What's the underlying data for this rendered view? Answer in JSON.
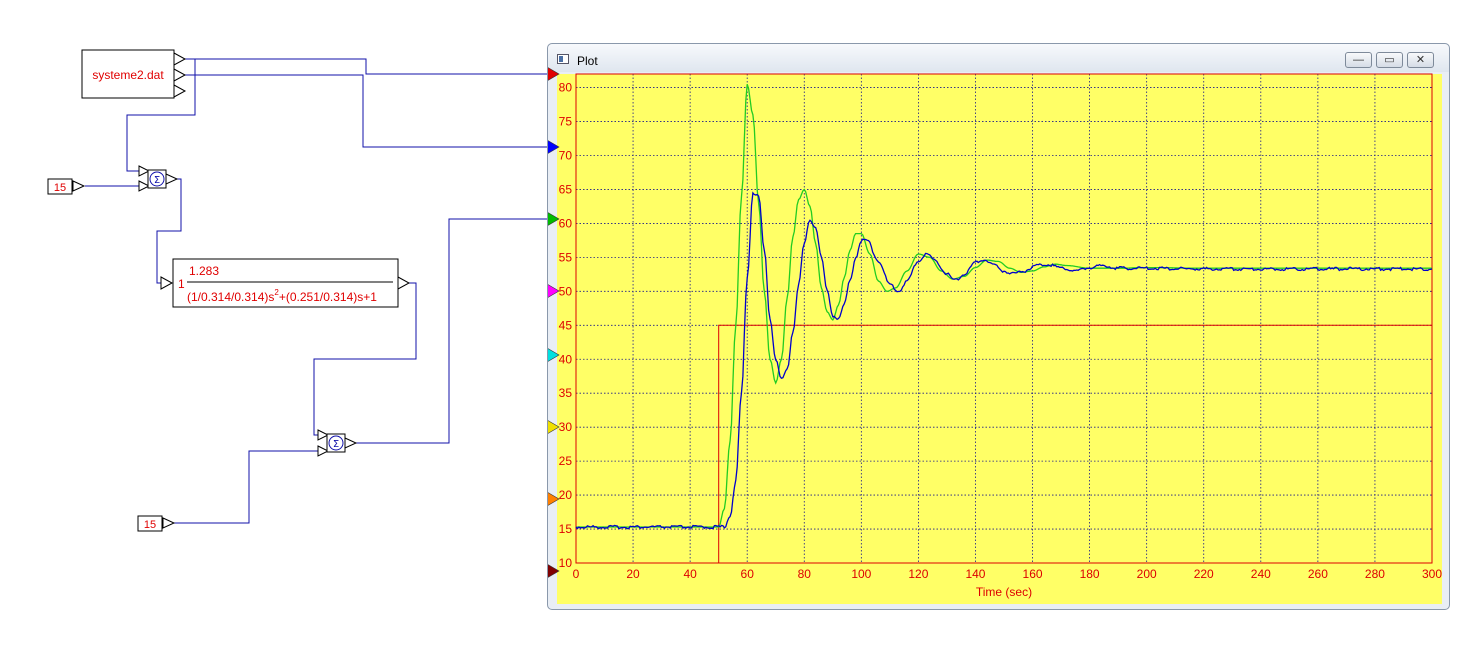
{
  "blocks": {
    "data_file": "systeme2.dat",
    "const_top": "15",
    "const_bottom": "15",
    "sum_symbol": "Σ",
    "tf_gain": "1",
    "tf_num": "1.283",
    "tf_den_part1": "(1/0.314/0.314)s",
    "tf_den_exp": "2",
    "tf_den_part2": "+(0.251/0.314)s+1"
  },
  "window": {
    "title": "Plot",
    "minimize_label": "—",
    "restore_label": "▭",
    "close_label": "✕"
  },
  "input_ports": [
    "red",
    "blue",
    "green",
    "magenta",
    "cyan",
    "yellow",
    "orange",
    "darkred"
  ],
  "colors": {
    "plot_bg": "#ffff66",
    "axis": "#dd0000",
    "grid": "#1a1a8a",
    "series_red": "#dd0000",
    "series_blue": "#0000cc",
    "series_green": "#22cc22",
    "wire": "#1010aa",
    "port_red": "#e00000",
    "port_blue": "#0000ff",
    "port_green": "#00bb00",
    "port_magenta": "#ff00ff",
    "port_cyan": "#00e0e0",
    "port_yellow": "#f0e000",
    "port_orange": "#ff8000",
    "port_darkred": "#800000"
  },
  "chart_data": {
    "type": "line",
    "xlabel": "Time (sec)",
    "ylabel": "",
    "xlim": [
      0,
      300
    ],
    "ylim": [
      10,
      82
    ],
    "xticks": [
      0,
      20,
      40,
      60,
      80,
      100,
      120,
      140,
      160,
      180,
      200,
      220,
      240,
      260,
      280,
      300
    ],
    "yticks": [
      10,
      15,
      20,
      25,
      30,
      35,
      40,
      45,
      50,
      55,
      60,
      65,
      70,
      75,
      80
    ],
    "grid": true,
    "series": [
      {
        "color": "red",
        "x": [
          0,
          50,
          50,
          300
        ],
        "y": [
          10,
          10,
          45,
          45
        ]
      },
      {
        "color": "green",
        "x": [
          0,
          50,
          52,
          54,
          56,
          58,
          60,
          62,
          64,
          66,
          68,
          70,
          72,
          74,
          76,
          78,
          80,
          82,
          84,
          86,
          88,
          90,
          92,
          94,
          96,
          98,
          100,
          103,
          106,
          109,
          112,
          116,
          120,
          124,
          128,
          132,
          136,
          140,
          144,
          148,
          152,
          156,
          160,
          164,
          168,
          172,
          180,
          190,
          200,
          220,
          240,
          260,
          280,
          300
        ],
        "y": [
          15.3,
          15.3,
          18,
          28,
          45,
          64,
          80.5,
          76,
          63,
          50,
          40,
          36.5,
          40,
          49,
          58,
          63.5,
          65,
          62.5,
          57,
          50.5,
          47,
          45.8,
          48,
          52,
          56,
          58.5,
          58.5,
          55.5,
          51.5,
          50,
          50.5,
          53,
          55.5,
          55,
          53,
          51.8,
          52.2,
          53.5,
          54.6,
          54.4,
          53.4,
          52.8,
          53,
          53.6,
          54,
          53.8,
          53.4,
          53.4,
          53.5,
          53.4,
          53.4,
          53.4,
          53.4,
          53.4
        ]
      },
      {
        "color": "blue",
        "x": [
          0,
          52,
          54,
          56,
          58,
          60,
          62,
          64,
          66,
          68,
          70,
          72,
          74,
          76,
          78,
          80,
          82,
          84,
          86,
          88,
          90,
          92,
          94,
          96,
          98,
          100,
          102,
          106,
          110,
          113,
          116,
          120,
          123,
          126,
          130,
          133,
          136,
          140,
          143,
          146,
          150,
          153,
          157,
          161,
          165,
          170,
          175,
          180,
          185,
          190,
          200,
          220,
          240,
          260,
          280,
          300
        ],
        "y": [
          15.3,
          15.3,
          17,
          22,
          35,
          52,
          64.5,
          64,
          56,
          46,
          40,
          37,
          38.5,
          44,
          51,
          57,
          60.5,
          59.5,
          55,
          50,
          46.5,
          46,
          48,
          51.5,
          55,
          57.5,
          57.5,
          54.5,
          51,
          50,
          51.5,
          54.5,
          55.5,
          54.5,
          52.5,
          51.6,
          52.5,
          54.2,
          54.7,
          54,
          53,
          52.6,
          53,
          53.8,
          54,
          53.5,
          53,
          53.5,
          53.8,
          53.4,
          53.4,
          53.3,
          53.3,
          53.3,
          53.3,
          53.3
        ]
      }
    ]
  }
}
